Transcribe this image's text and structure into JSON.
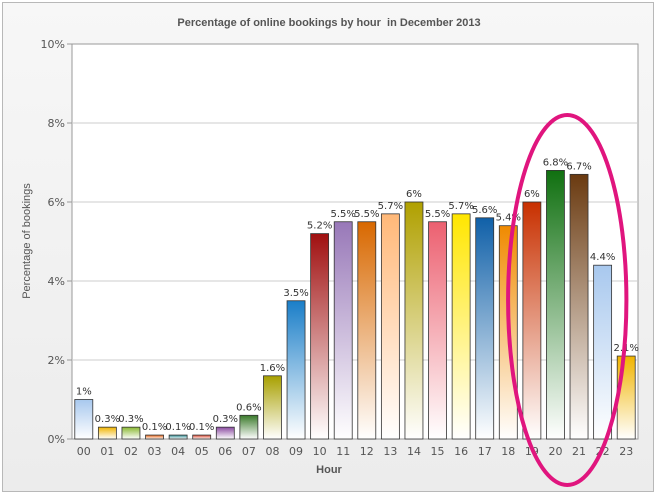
{
  "chart_data": {
    "type": "bar",
    "title": "Percentage of online bookings by hour  in December 2013",
    "xlabel": "Hour",
    "ylabel": "Percentage of bookings",
    "categories": [
      "00",
      "01",
      "02",
      "03",
      "04",
      "05",
      "06",
      "07",
      "08",
      "09",
      "10",
      "11",
      "12",
      "13",
      "14",
      "15",
      "16",
      "17",
      "18",
      "19",
      "20",
      "21",
      "22",
      "23"
    ],
    "values": [
      1,
      0.3,
      0.3,
      0.1,
      0.1,
      0.1,
      0.3,
      0.6,
      1.6,
      3.5,
      5.2,
      5.5,
      5.5,
      5.7,
      6,
      5.5,
      5.7,
      5.6,
      5.4,
      6,
      6.8,
      6.7,
      4.4,
      2.1
    ],
    "value_labels": [
      "1%",
      "0.3%",
      "0.3%",
      "0.1%",
      "0.1%",
      "0.1%",
      "0.3%",
      "0.6%",
      "1.6%",
      "3.5%",
      "5.2%",
      "5.5%",
      "5.5%",
      "5.7%",
      "6%",
      "5.5%",
      "5.7%",
      "5.6%",
      "5.4%",
      "6%",
      "6.8%",
      "6.7%",
      "4.4%",
      "2.1%"
    ],
    "bar_colors": [
      "#a8c8ee",
      "#f0b400",
      "#88b830",
      "#e86010",
      "#2a8a90",
      "#d84028",
      "#8a4aa0",
      "#3a7a2a",
      "#a8a000",
      "#1a7ec8",
      "#a01010",
      "#9878b8",
      "#d86800",
      "#ffb878",
      "#b0a000",
      "#ec6070",
      "#ffe600",
      "#1060a8",
      "#f08a00",
      "#c83000",
      "#107010",
      "#6a3a10",
      "#a8c8ee",
      "#f0b400"
    ],
    "ylim": [
      0,
      10
    ],
    "yticks": [
      0,
      2,
      4,
      6,
      8,
      10
    ],
    "ytick_labels": [
      "0%",
      "2%",
      "4%",
      "6%",
      "8%",
      "10%"
    ],
    "grid": true,
    "legend": "none",
    "annotation": {
      "shape": "ellipse",
      "color": "#e0157e",
      "around_categories": [
        "19",
        "20",
        "21",
        "22"
      ]
    }
  }
}
